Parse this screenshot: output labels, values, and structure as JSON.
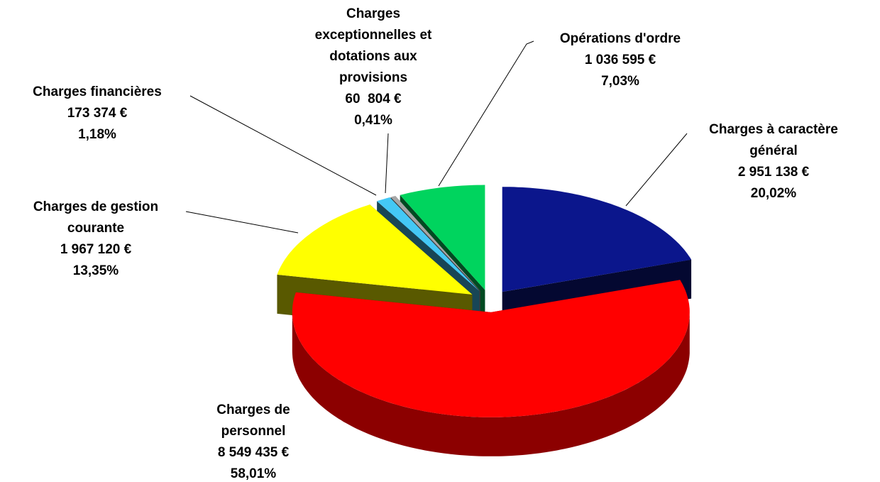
{
  "chart_data": {
    "type": "pie3d",
    "categories": [
      [
        "Charges à caractère",
        "général"
      ],
      [
        "Charges de",
        "personnel"
      ],
      [
        "Charges de gestion",
        "courante"
      ],
      [
        "Charges financières"
      ],
      [
        "Charges",
        "exceptionnelles et",
        "dotations aux",
        "provisions"
      ],
      [
        "Opérations d'ordre"
      ]
    ],
    "values": [
      2951138,
      8549435,
      1967120,
      173374,
      60804,
      1036595
    ],
    "value_labels": [
      "2 951 138 €",
      "8 549 435 €",
      "1 967 120 €",
      "173 374 €",
      "60  804 €",
      "1 036 595 €"
    ],
    "percentages": [
      20.02,
      58.01,
      13.35,
      1.18,
      0.41,
      7.03
    ],
    "percentage_labels": [
      "20,02%",
      "58,01%",
      "13,35%",
      "1,18%",
      "0,41%",
      "7,03%"
    ],
    "colors": [
      "#0b168c",
      "#ff0000",
      "#ffff00",
      "#44c8f5",
      "#a6a6a6",
      "#00d45e"
    ]
  }
}
